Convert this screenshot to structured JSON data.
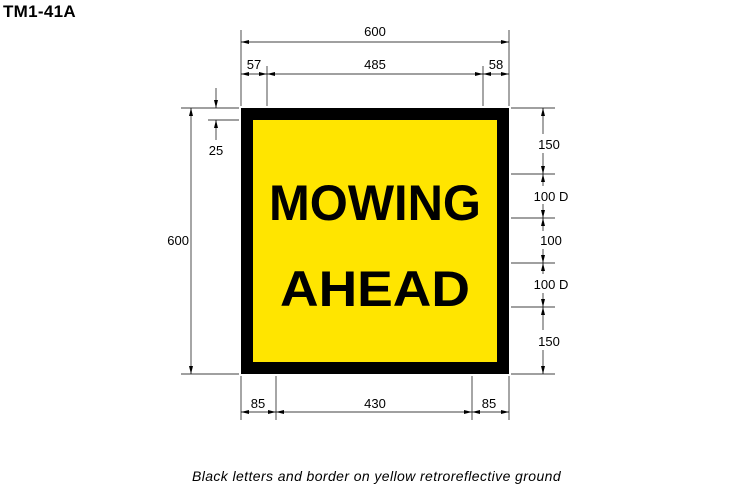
{
  "title": "TM1-41A",
  "caption": "Black letters and border on yellow retroreflective ground",
  "sign": {
    "line1": "MOWING",
    "line2": "AHEAD",
    "background_color": "#FFE500",
    "border_color": "#000000"
  },
  "dimensions": {
    "top_total": "600",
    "top_left": "57",
    "top_middle": "485",
    "top_right": "58",
    "left_border": "25",
    "left_total": "600",
    "right_1": "150",
    "right_2": "100 D",
    "right_3": "100",
    "right_4": "100 D",
    "right_5": "150",
    "bottom_left": "85",
    "bottom_middle": "430",
    "bottom_right": "85"
  }
}
